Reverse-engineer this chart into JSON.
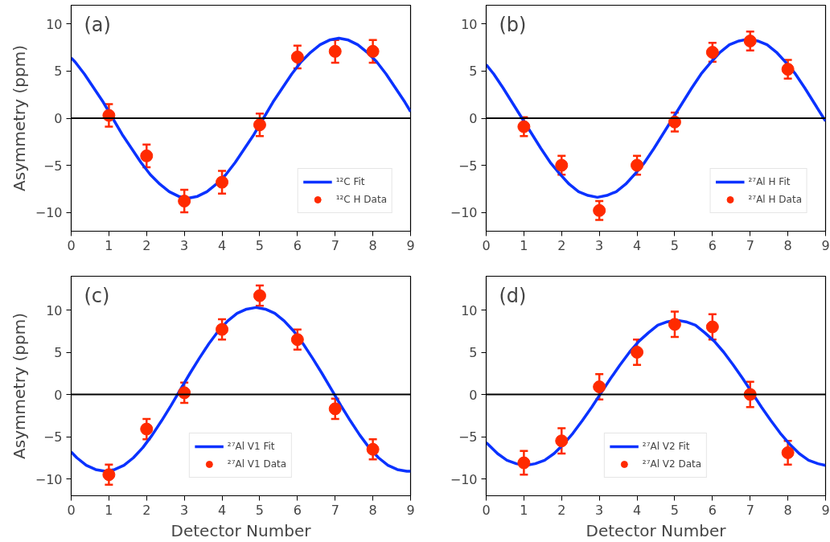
{
  "chart_data": [
    {
      "type": "line",
      "annotations": [
        "(a)"
      ],
      "ylabel": "Asymmetry (ppm)",
      "xlim": [
        0,
        9
      ],
      "ylim": [
        -12,
        12
      ],
      "xticks": [
        0,
        1,
        2,
        3,
        4,
        5,
        6,
        7,
        8,
        9
      ],
      "yticks": [
        -10,
        -5,
        0,
        5,
        10
      ],
      "legend": "bottom right",
      "ref_lines": [
        {
          "axis": "y",
          "value": 0,
          "color": "#000000"
        }
      ],
      "series": [
        {
          "name": "¹²C Fit",
          "color": "#0a32ff",
          "x": [
            0,
            0.1,
            0.35,
            0.6,
            0.85,
            1.1,
            1.35,
            1.6,
            1.85,
            2.1,
            2.35,
            2.6,
            2.85,
            3.1,
            3.35,
            3.6,
            3.85,
            4.1,
            4.35,
            4.6,
            4.85,
            5.1,
            5.35,
            5.6,
            5.85,
            6.1,
            6.35,
            6.6,
            6.85,
            7.1,
            7.35,
            7.6,
            7.85,
            8.1,
            8.35,
            8.6,
            8.85,
            9
          ],
          "values": [
            6.4,
            6.0,
            4.7,
            3.2,
            1.7,
            0,
            -1.7,
            -3.2,
            -4.7,
            -6.0,
            -7.0,
            -7.8,
            -8.3,
            -8.5,
            -8.3,
            -7.8,
            -7.0,
            -6.0,
            -4.7,
            -3.2,
            -1.7,
            0,
            1.7,
            3.2,
            4.7,
            6.0,
            7.0,
            7.8,
            8.3,
            8.5,
            8.3,
            7.8,
            7.0,
            6.0,
            4.7,
            3.2,
            1.7,
            0.7
          ]
        },
        {
          "name": "¹²C H Data",
          "type": "scatter",
          "marker": "circle",
          "color": "#ff2a00",
          "x": [
            1,
            2,
            3,
            4,
            5,
            6,
            7,
            8
          ],
          "values": [
            0.3,
            -4.0,
            -8.8,
            -6.8,
            -0.7,
            6.5,
            7.1,
            7.1
          ],
          "errors": [
            1.2,
            1.2,
            1.2,
            1.2,
            1.2,
            1.2,
            1.2,
            1.2
          ]
        }
      ]
    },
    {
      "type": "line",
      "annotations": [
        "(b)"
      ],
      "xlim": [
        0,
        9
      ],
      "ylim": [
        -12,
        12
      ],
      "xticks": [
        0,
        1,
        2,
        3,
        4,
        5,
        6,
        7,
        8,
        9
      ],
      "yticks": [
        -10,
        -5,
        0,
        5,
        10
      ],
      "legend": "bottom right",
      "ref_lines": [
        {
          "axis": "y",
          "value": 0,
          "color": "#000000"
        }
      ],
      "series": [
        {
          "name": "²⁷Al H Fit",
          "color": "#0a32ff",
          "x": [
            0,
            0.2,
            0.45,
            0.7,
            0.95,
            1.2,
            1.45,
            1.7,
            1.95,
            2.2,
            2.45,
            2.7,
            2.95,
            3.2,
            3.45,
            3.7,
            3.95,
            4.2,
            4.45,
            4.7,
            4.95,
            5.2,
            5.45,
            5.7,
            5.95,
            6.2,
            6.45,
            6.7,
            6.95,
            7.2,
            7.45,
            7.7,
            7.95,
            8.2,
            8.45,
            8.7,
            8.95,
            9
          ],
          "values": [
            5.7,
            4.7,
            3.2,
            1.6,
            0,
            -1.6,
            -3.2,
            -4.7,
            -5.9,
            -7.0,
            -7.8,
            -8.2,
            -8.4,
            -8.2,
            -7.8,
            -7.0,
            -5.9,
            -4.7,
            -3.2,
            -1.6,
            0,
            1.6,
            3.2,
            4.7,
            5.9,
            7.0,
            7.8,
            8.2,
            8.4,
            8.2,
            7.8,
            7.0,
            5.9,
            4.7,
            3.2,
            1.6,
            0,
            -0.3
          ]
        },
        {
          "name": "²⁷Al H Data",
          "type": "scatter",
          "marker": "circle",
          "color": "#ff2a00",
          "x": [
            1,
            2,
            3,
            4,
            5,
            6,
            7,
            8
          ],
          "values": [
            -0.9,
            -5.0,
            -9.8,
            -5.0,
            -0.4,
            7.0,
            8.2,
            5.2
          ],
          "errors": [
            1.0,
            1.0,
            1.0,
            1.0,
            1.0,
            1.0,
            1.0,
            1.0
          ]
        }
      ]
    },
    {
      "type": "line",
      "annotations": [
        "(c)"
      ],
      "ylabel": "Asymmetry (ppm)",
      "xlabel": "Detector Number",
      "xlim": [
        0,
        9
      ],
      "ylim": [
        -12,
        14
      ],
      "xticks": [
        0,
        1,
        2,
        3,
        4,
        5,
        6,
        7,
        8,
        9
      ],
      "yticks": [
        -10,
        -5,
        0,
        5,
        10
      ],
      "legend": "bottom",
      "ref_lines": [
        {
          "axis": "y",
          "value": 0,
          "color": "#000000"
        }
      ],
      "series": [
        {
          "name": "²⁷Al V1 Fit",
          "color": "#0a32ff",
          "x": [
            0,
            0.15,
            0.4,
            0.65,
            0.9,
            1.15,
            1.4,
            1.65,
            1.9,
            2.15,
            2.4,
            2.65,
            2.9,
            3.15,
            3.4,
            3.65,
            3.9,
            4.15,
            4.4,
            4.65,
            4.9,
            5.15,
            5.4,
            5.65,
            5.9,
            6.15,
            6.4,
            6.65,
            6.9,
            7.15,
            7.4,
            7.65,
            7.9,
            8.15,
            8.4,
            8.65,
            8.9,
            9
          ],
          "values": [
            -6.8,
            -7.5,
            -8.4,
            -8.9,
            -9.1,
            -8.9,
            -8.4,
            -7.5,
            -6.3,
            -4.8,
            -3.1,
            -1.3,
            0.6,
            2.5,
            4.3,
            6.0,
            7.5,
            8.7,
            9.6,
            10.1,
            10.3,
            10.1,
            9.6,
            8.7,
            7.5,
            6.0,
            4.3,
            2.5,
            0.6,
            -1.3,
            -3.1,
            -4.8,
            -6.3,
            -7.5,
            -8.4,
            -8.9,
            -9.1,
            -9.1
          ]
        },
        {
          "name": "²⁷Al V1 Data",
          "type": "scatter",
          "marker": "circle",
          "color": "#ff2a00",
          "x": [
            1,
            2,
            3,
            4,
            5,
            6,
            7,
            8
          ],
          "values": [
            -9.5,
            -4.1,
            0.2,
            7.7,
            11.7,
            6.5,
            -1.7,
            -6.5
          ],
          "errors": [
            1.2,
            1.2,
            1.2,
            1.2,
            1.2,
            1.2,
            1.2,
            1.2
          ]
        }
      ]
    },
    {
      "type": "line",
      "annotations": [
        "(d)"
      ],
      "xlabel": "Detector Number",
      "xlim": [
        0,
        9
      ],
      "ylim": [
        -12,
        14
      ],
      "xticks": [
        0,
        1,
        2,
        3,
        4,
        5,
        6,
        7,
        8,
        9
      ],
      "yticks": [
        -10,
        -5,
        0,
        5,
        10
      ],
      "legend": "bottom",
      "ref_lines": [
        {
          "axis": "y",
          "value": 0,
          "color": "#000000"
        }
      ],
      "series": [
        {
          "name": "²⁷Al V2 Fit",
          "color": "#0a32ff",
          "x": [
            0,
            0.05,
            0.3,
            0.55,
            0.8,
            1.05,
            1.3,
            1.55,
            1.8,
            2.05,
            2.3,
            2.55,
            2.8,
            3.05,
            3.3,
            3.55,
            3.8,
            4.05,
            4.3,
            4.55,
            4.8,
            5.05,
            5.3,
            5.55,
            5.8,
            6.05,
            6.3,
            6.55,
            6.8,
            7.05,
            7.3,
            7.55,
            7.8,
            8.05,
            8.3,
            8.55,
            8.8,
            9
          ],
          "values": [
            -5.7,
            -5.9,
            -7.0,
            -7.8,
            -8.2,
            -8.4,
            -8.2,
            -7.8,
            -7.0,
            -5.9,
            -4.6,
            -3.1,
            -1.5,
            0.2,
            1.9,
            3.5,
            5.0,
            6.3,
            7.3,
            8.2,
            8.6,
            8.8,
            8.6,
            8.2,
            7.3,
            6.3,
            5.0,
            3.5,
            1.9,
            0.2,
            -1.5,
            -3.1,
            -4.6,
            -5.9,
            -7.0,
            -7.8,
            -8.2,
            -8.4
          ]
        },
        {
          "name": "²⁷Al V2 Data",
          "type": "scatter",
          "marker": "circle",
          "color": "#ff2a00",
          "x": [
            1,
            2,
            3,
            4,
            5,
            6,
            7,
            8
          ],
          "values": [
            -8.1,
            -5.5,
            0.9,
            5.0,
            8.3,
            8.0,
            0,
            -6.9
          ],
          "errors": [
            1.4,
            1.5,
            1.5,
            1.5,
            1.5,
            1.5,
            1.5,
            1.4
          ]
        }
      ]
    }
  ]
}
